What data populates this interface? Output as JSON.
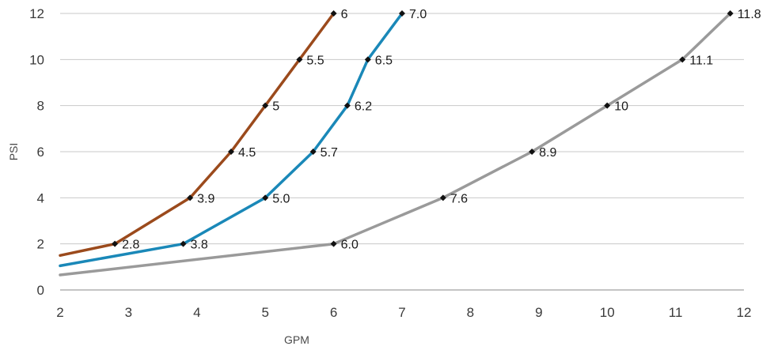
{
  "chart_data": {
    "type": "line",
    "title": "",
    "xlabel": "GPM",
    "ylabel": "PSI",
    "xlim": [
      2,
      12
    ],
    "ylim": [
      0,
      12
    ],
    "x_ticks": [
      "2",
      "3",
      "4",
      "5",
      "6",
      "7",
      "8",
      "9",
      "10",
      "11",
      "12"
    ],
    "y_ticks": [
      "0",
      "2",
      "4",
      "6",
      "8",
      "10",
      "12"
    ],
    "grid": "horizontal",
    "legend": "none",
    "series": [
      {
        "color": "#9b4a1c",
        "points": [
          {
            "x": 2.0,
            "y": 1.5
          },
          {
            "x": 2.8,
            "y": 2,
            "label": "2.8"
          },
          {
            "x": 3.9,
            "y": 4,
            "label": "3.9"
          },
          {
            "x": 4.5,
            "y": 6,
            "label": "4.5"
          },
          {
            "x": 5.0,
            "y": 8,
            "label": "5"
          },
          {
            "x": 5.5,
            "y": 10,
            "label": "5.5"
          },
          {
            "x": 6.0,
            "y": 12,
            "label": "6"
          }
        ]
      },
      {
        "color": "#1a88b8",
        "points": [
          {
            "x": 2.0,
            "y": 1.05
          },
          {
            "x": 3.8,
            "y": 2,
            "label": "3.8"
          },
          {
            "x": 5.0,
            "y": 4,
            "label": "5.0"
          },
          {
            "x": 5.7,
            "y": 6,
            "label": "5.7"
          },
          {
            "x": 6.2,
            "y": 8,
            "label": "6.2"
          },
          {
            "x": 6.5,
            "y": 10,
            "label": "6.5"
          },
          {
            "x": 7.0,
            "y": 12,
            "label": "7.0"
          }
        ]
      },
      {
        "color": "#9a9a9a",
        "points": [
          {
            "x": 2.0,
            "y": 0.65
          },
          {
            "x": 6.0,
            "y": 2,
            "label": "6.0"
          },
          {
            "x": 7.6,
            "y": 4,
            "label": "7.6"
          },
          {
            "x": 8.9,
            "y": 6,
            "label": "8.9"
          },
          {
            "x": 10.0,
            "y": 8,
            "label": "10"
          },
          {
            "x": 11.1,
            "y": 10,
            "label": "11.1"
          },
          {
            "x": 11.8,
            "y": 12,
            "label": "11.8"
          }
        ]
      }
    ]
  }
}
